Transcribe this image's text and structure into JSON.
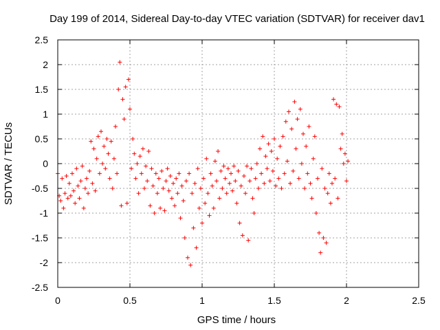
{
  "chart_data": {
    "type": "scatter",
    "title": "Day 199 of 2014, Sidereal Day-to-day VTEC variation (SDTVAR) for receiver dav1",
    "xlabel": "GPS time / hours",
    "ylabel": "SDTVAR / TECUs",
    "xlim": [
      0,
      2.5
    ],
    "ylim": [
      -2.5,
      2.5
    ],
    "x_ticks": [
      0,
      0.5,
      1,
      1.5,
      2,
      2.5
    ],
    "x_tick_labels": [
      "0",
      "0.5",
      "1",
      "1.5",
      "2",
      "2.5"
    ],
    "y_ticks": [
      2.5,
      2,
      1.5,
      1,
      0.5,
      0,
      -0.5,
      -1,
      -1.5,
      -2,
      -2.5
    ],
    "y_tick_labels": [
      "2.5",
      "2",
      "1.5",
      "1",
      "0.5",
      "0",
      "-0.5",
      "-1",
      "-1.5",
      "-2",
      "-2.5"
    ],
    "grid": true,
    "marker": "+",
    "color": "#ff0000",
    "series": [
      {
        "name": "SDTVAR",
        "points": [
          [
            0.0,
            -0.2
          ],
          [
            0.01,
            -0.65
          ],
          [
            0.02,
            -0.75
          ],
          [
            0.03,
            -0.3
          ],
          [
            0.04,
            -0.9
          ],
          [
            0.05,
            -0.6
          ],
          [
            0.06,
            -0.25
          ],
          [
            0.07,
            -0.7
          ],
          [
            0.08,
            -0.4
          ],
          [
            0.09,
            -0.65
          ],
          [
            0.1,
            -0.2
          ],
          [
            0.11,
            -0.55
          ],
          [
            0.12,
            -0.8
          ],
          [
            0.13,
            -0.1
          ],
          [
            0.14,
            -0.45
          ],
          [
            0.15,
            -0.7
          ],
          [
            0.16,
            -0.35
          ],
          [
            0.17,
            -0.05
          ],
          [
            0.18,
            -0.9
          ],
          [
            0.19,
            -0.5
          ],
          [
            0.2,
            -0.3
          ],
          [
            0.21,
            -0.6
          ],
          [
            0.22,
            -0.15
          ],
          [
            0.23,
            0.45
          ],
          [
            0.24,
            -0.4
          ],
          [
            0.25,
            0.3
          ],
          [
            0.26,
            -0.55
          ],
          [
            0.27,
            0.1
          ],
          [
            0.28,
            0.55
          ],
          [
            0.29,
            -0.2
          ],
          [
            0.3,
            0.65
          ],
          [
            0.31,
            0.0
          ],
          [
            0.32,
            0.35
          ],
          [
            0.33,
            -0.1
          ],
          [
            0.34,
            0.5
          ],
          [
            0.35,
            0.2
          ],
          [
            0.36,
            -0.3
          ],
          [
            0.37,
            0.45
          ],
          [
            0.38,
            -0.5
          ],
          [
            0.39,
            0.1
          ],
          [
            0.4,
            0.75
          ],
          [
            0.41,
            -0.2
          ],
          [
            0.42,
            1.5
          ],
          [
            0.43,
            2.05
          ],
          [
            0.44,
            -0.85
          ],
          [
            0.45,
            1.3
          ],
          [
            0.46,
            0.9
          ],
          [
            0.47,
            1.55
          ],
          [
            0.48,
            -0.8
          ],
          [
            0.49,
            1.7
          ],
          [
            0.5,
            1.1
          ],
          [
            0.51,
            -0.1
          ],
          [
            0.52,
            0.5
          ],
          [
            0.53,
            0.2
          ],
          [
            0.54,
            -0.3
          ],
          [
            0.55,
            0.0
          ],
          [
            0.56,
            -0.6
          ],
          [
            0.57,
            0.15
          ],
          [
            0.58,
            -0.2
          ],
          [
            0.59,
            0.3
          ],
          [
            0.6,
            -0.5
          ],
          [
            0.61,
            -0.05
          ],
          [
            0.62,
            -0.35
          ],
          [
            0.63,
            0.25
          ],
          [
            0.64,
            -0.85
          ],
          [
            0.65,
            -0.1
          ],
          [
            0.66,
            -0.45
          ],
          [
            0.67,
            -1.0
          ],
          [
            0.68,
            -0.2
          ],
          [
            0.69,
            -0.6
          ],
          [
            0.7,
            -0.3
          ],
          [
            0.71,
            -0.9
          ],
          [
            0.72,
            -0.15
          ],
          [
            0.73,
            -0.5
          ],
          [
            0.74,
            -0.95
          ],
          [
            0.75,
            -0.35
          ],
          [
            0.76,
            -0.1
          ],
          [
            0.77,
            -0.55
          ],
          [
            0.78,
            -0.25
          ],
          [
            0.79,
            -0.7
          ],
          [
            0.8,
            -0.4
          ],
          [
            0.81,
            -0.85
          ],
          [
            0.82,
            -0.3
          ],
          [
            0.83,
            -0.6
          ],
          [
            0.84,
            -0.2
          ],
          [
            0.85,
            -1.1
          ],
          [
            0.86,
            -0.45
          ],
          [
            0.87,
            -0.75
          ],
          [
            0.88,
            -1.5
          ],
          [
            0.89,
            -0.35
          ],
          [
            0.9,
            -1.9
          ],
          [
            0.91,
            -0.2
          ],
          [
            0.92,
            -2.05
          ],
          [
            0.93,
            -0.6
          ],
          [
            0.94,
            -1.3
          ],
          [
            0.95,
            -0.4
          ],
          [
            0.96,
            -1.7
          ],
          [
            0.97,
            -0.1
          ],
          [
            0.98,
            -0.9
          ],
          [
            0.99,
            -0.5
          ],
          [
            1.0,
            -1.2
          ],
          [
            1.01,
            -0.3
          ],
          [
            1.02,
            -0.8
          ],
          [
            1.03,
            0.1
          ],
          [
            1.04,
            -0.6
          ],
          [
            1.05,
            -1.05
          ],
          [
            1.06,
            -0.2
          ],
          [
            1.07,
            -0.45
          ],
          [
            1.08,
            -0.9
          ],
          [
            1.09,
            0.05
          ],
          [
            1.1,
            -0.35
          ],
          [
            1.11,
            0.25
          ],
          [
            1.12,
            -0.7
          ],
          [
            1.13,
            -0.15
          ],
          [
            1.14,
            -0.5
          ],
          [
            1.15,
            -0.05
          ],
          [
            1.16,
            -0.3
          ],
          [
            1.17,
            -0.6
          ],
          [
            1.18,
            -0.1
          ],
          [
            1.19,
            -0.4
          ],
          [
            1.2,
            -0.2
          ],
          [
            1.21,
            -0.55
          ],
          [
            1.22,
            -0.05
          ],
          [
            1.23,
            -0.35
          ],
          [
            1.24,
            -0.8
          ],
          [
            1.25,
            -0.15
          ],
          [
            1.26,
            -1.2
          ],
          [
            1.27,
            -0.45
          ],
          [
            1.28,
            -1.45
          ],
          [
            1.29,
            -0.25
          ],
          [
            1.3,
            -0.6
          ],
          [
            1.31,
            -0.05
          ],
          [
            1.32,
            -1.55
          ],
          [
            1.33,
            -0.35
          ],
          [
            1.34,
            -0.1
          ],
          [
            1.35,
            -0.7
          ],
          [
            1.36,
            -1.0
          ],
          [
            1.37,
            -0.3
          ],
          [
            1.38,
            0.0
          ],
          [
            1.39,
            -0.5
          ],
          [
            1.4,
            0.3
          ],
          [
            1.41,
            -0.2
          ],
          [
            1.42,
            0.55
          ],
          [
            1.43,
            -0.4
          ],
          [
            1.44,
            0.15
          ],
          [
            1.45,
            -0.1
          ],
          [
            1.46,
            0.4
          ],
          [
            1.47,
            -0.35
          ],
          [
            1.48,
            0.25
          ],
          [
            1.49,
            -0.15
          ],
          [
            1.5,
            0.5
          ],
          [
            1.51,
            -0.45
          ],
          [
            1.52,
            0.1
          ],
          [
            1.53,
            -0.3
          ],
          [
            1.54,
            0.35
          ],
          [
            1.55,
            -0.5
          ],
          [
            1.56,
            0.55
          ],
          [
            1.57,
            -0.2
          ],
          [
            1.58,
            0.85
          ],
          [
            1.59,
            0.05
          ],
          [
            1.6,
            1.05
          ],
          [
            1.61,
            -0.4
          ],
          [
            1.62,
            0.7
          ],
          [
            1.63,
            -0.15
          ],
          [
            1.64,
            1.25
          ],
          [
            1.65,
            0.3
          ],
          [
            1.66,
            0.9
          ],
          [
            1.67,
            -0.3
          ],
          [
            1.68,
            1.1
          ],
          [
            1.69,
            0.0
          ],
          [
            1.7,
            0.6
          ],
          [
            1.71,
            -0.5
          ],
          [
            1.72,
            0.35
          ],
          [
            1.73,
            -0.2
          ],
          [
            1.74,
            0.75
          ],
          [
            1.75,
            -0.4
          ],
          [
            1.76,
            -0.7
          ],
          [
            1.77,
            0.1
          ],
          [
            1.78,
            0.55
          ],
          [
            1.79,
            -1.0
          ],
          [
            1.8,
            -0.3
          ],
          [
            1.81,
            -1.4
          ],
          [
            1.82,
            -1.8
          ],
          [
            1.83,
            -0.1
          ],
          [
            1.84,
            -1.5
          ],
          [
            1.85,
            -0.5
          ],
          [
            1.86,
            -1.6
          ],
          [
            1.87,
            -0.6
          ],
          [
            1.88,
            -0.2
          ],
          [
            1.89,
            -0.8
          ],
          [
            1.9,
            -0.4
          ],
          [
            1.91,
            1.3
          ],
          [
            1.92,
            -0.3
          ],
          [
            1.93,
            1.2
          ],
          [
            1.94,
            -0.7
          ],
          [
            1.95,
            1.15
          ],
          [
            1.96,
            0.3
          ],
          [
            1.97,
            0.6
          ],
          [
            1.98,
            0.0
          ],
          [
            1.99,
            0.2
          ],
          [
            2.0,
            -0.35
          ],
          [
            2.01,
            0.05
          ]
        ]
      }
    ]
  }
}
